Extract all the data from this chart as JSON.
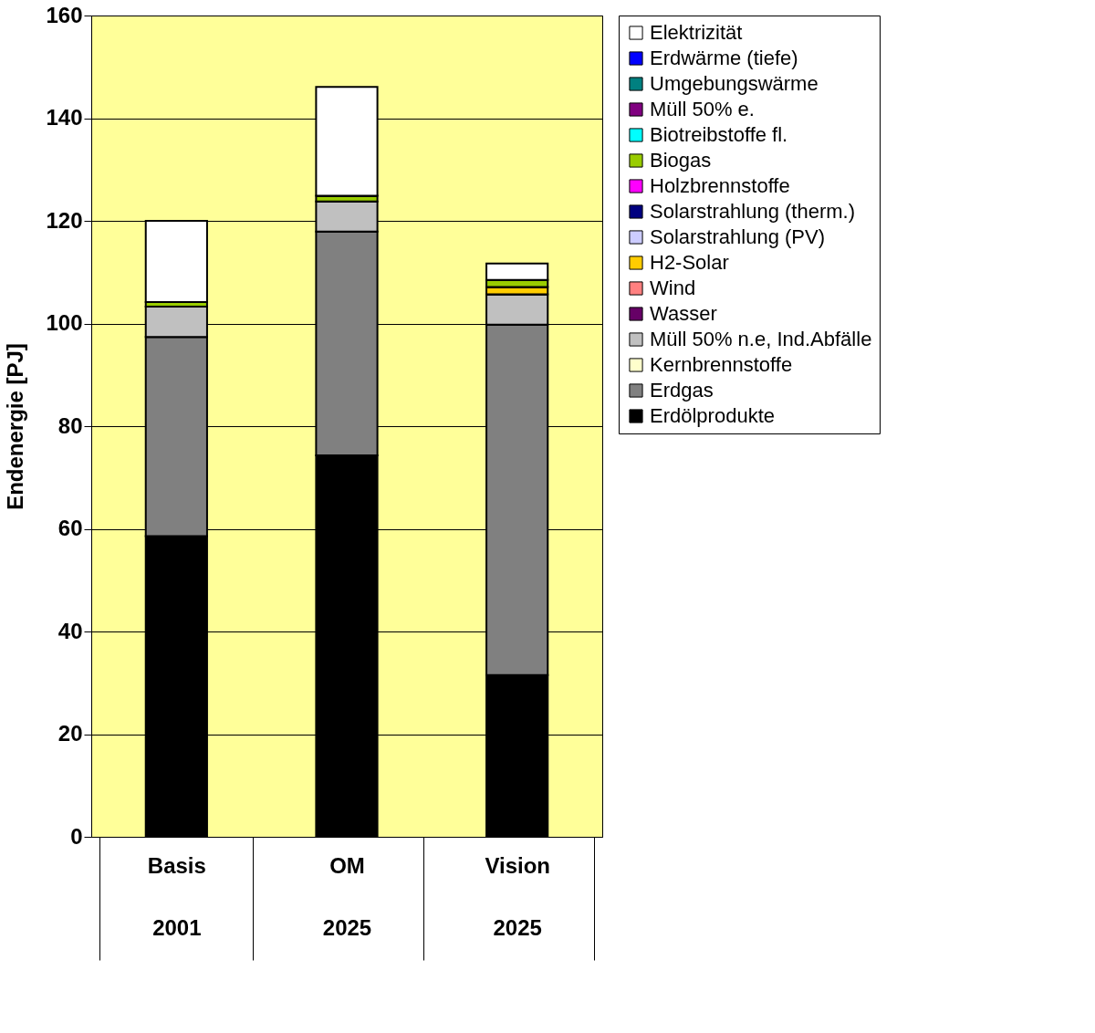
{
  "chart_data": {
    "type": "bar",
    "stacked": true,
    "ylabel": "Endenergie [PJ]",
    "categories": [
      "Basis\n2001",
      "OM\n2025",
      "Vision\n2025"
    ],
    "ylim": [
      0,
      160
    ],
    "yticks": [
      0,
      20,
      40,
      60,
      80,
      100,
      120,
      140,
      160
    ],
    "grid": "y",
    "legend": "right",
    "series": [
      {
        "name": "Erdölprodukte",
        "color": "#000000",
        "values": [
          58.6,
          74.3,
          31.5
        ]
      },
      {
        "name": "Erdgas",
        "color": "#808080",
        "values": [
          38.8,
          43.6,
          68.3
        ]
      },
      {
        "name": "Kernbrennstoffe",
        "color": "#ffffcc",
        "values": [
          0,
          0,
          0
        ]
      },
      {
        "name": "Müll 50% n.e, Ind.Abfälle",
        "color": "#c0c0c0",
        "values": [
          5.9,
          5.9,
          5.9
        ]
      },
      {
        "name": "Wasser",
        "color": "#660066",
        "values": [
          0,
          0,
          0
        ]
      },
      {
        "name": "Wind",
        "color": "#ff8080",
        "values": [
          0,
          0,
          0
        ]
      },
      {
        "name": "H2-Solar",
        "color": "#ffcc00",
        "values": [
          0,
          0,
          1.4
        ]
      },
      {
        "name": "Solarstrahlung (PV)",
        "color": "#ccccff",
        "values": [
          0,
          0,
          0
        ]
      },
      {
        "name": "Solarstrahlung (therm.)",
        "color": "#000080",
        "values": [
          0,
          0,
          0
        ]
      },
      {
        "name": "Holzbrennstoffe",
        "color": "#ff00ff",
        "values": [
          0,
          0,
          0
        ]
      },
      {
        "name": "Biogas",
        "color": "#99cc00",
        "values": [
          0.9,
          1.1,
          1.4
        ]
      },
      {
        "name": "Biotreibstoffe fl.",
        "color": "#00ffff",
        "values": [
          0,
          0,
          0
        ]
      },
      {
        "name": "Müll 50% e.",
        "color": "#800080",
        "values": [
          0,
          0,
          0
        ]
      },
      {
        "name": "Umgebungswärme",
        "color": "#008080",
        "values": [
          0,
          0,
          0
        ]
      },
      {
        "name": "Erdwärme (tiefe)",
        "color": "#0000ff",
        "values": [
          0,
          0,
          0
        ]
      },
      {
        "name": "Elektrizität",
        "color": "#ffffff",
        "values": [
          15.8,
          21.2,
          3.2
        ]
      }
    ]
  }
}
